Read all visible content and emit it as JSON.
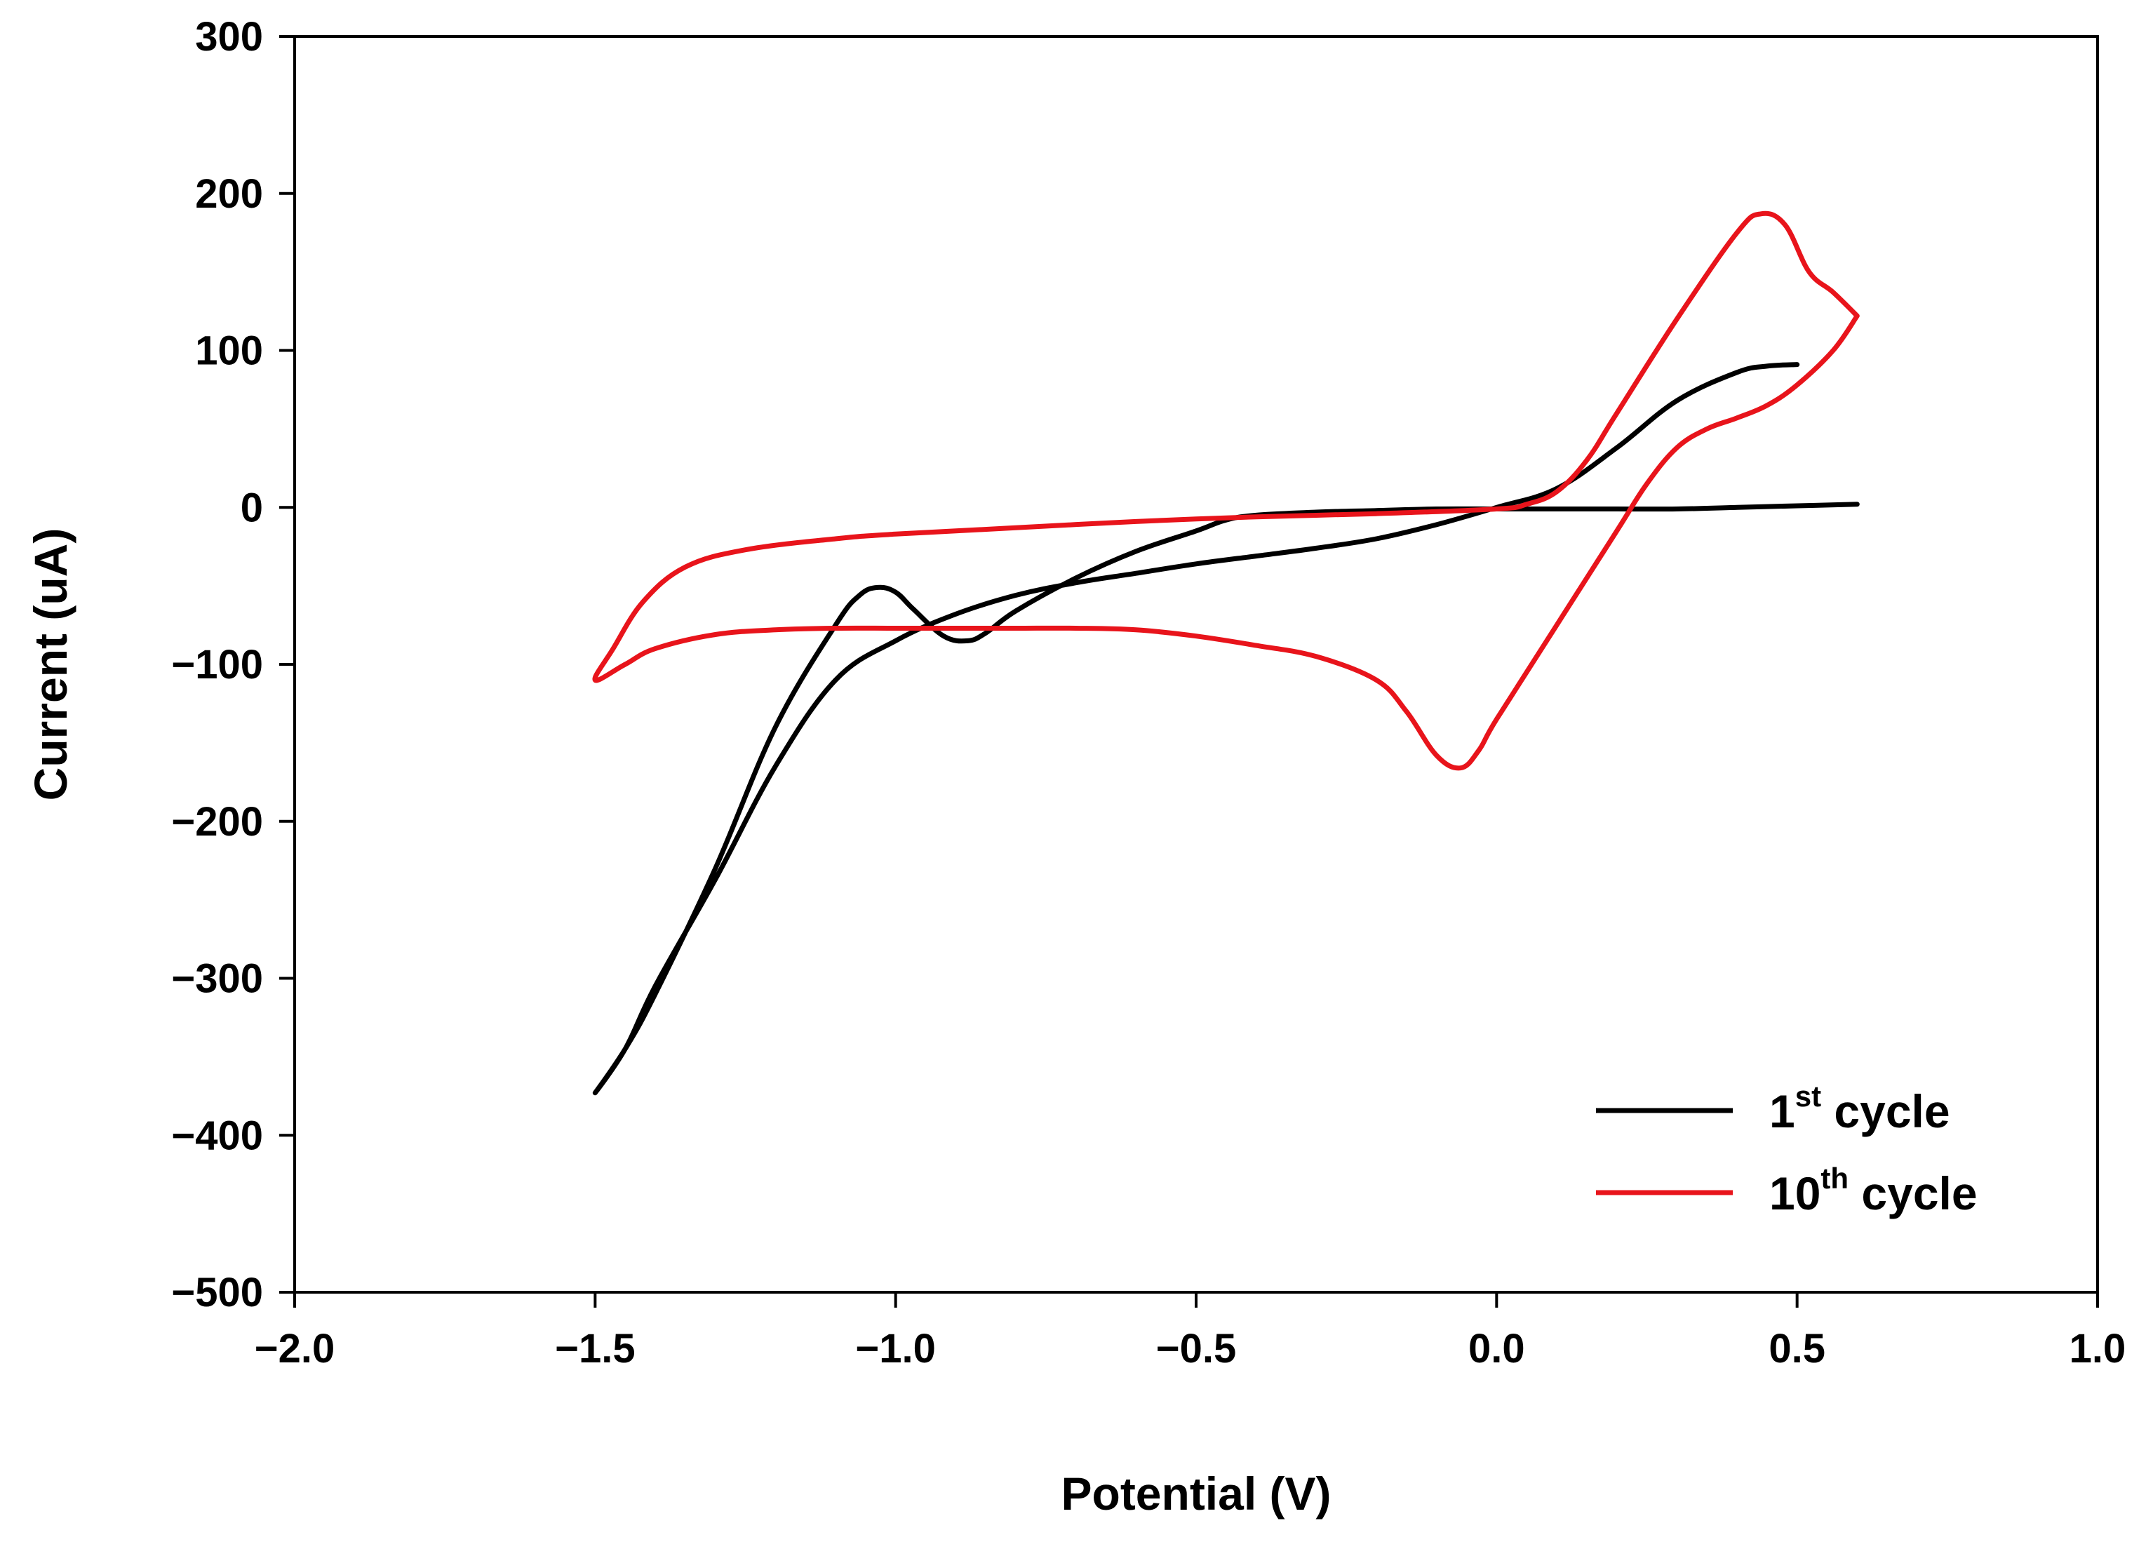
{
  "chart_data": {
    "type": "line",
    "title": "",
    "xlabel": "Potential (V)",
    "ylabel": "Current (uA)",
    "xlim": [
      -2.0,
      1.0
    ],
    "ylim": [
      -500,
      300
    ],
    "xticks": [
      -2.0,
      -1.5,
      -1.0,
      -0.5,
      0.0,
      0.5,
      1.0
    ],
    "xtick_labels": [
      "−2.0",
      "−1.5",
      "−1.0",
      "−0.5",
      "0.0",
      "0.5",
      "1.0"
    ],
    "yticks": [
      300,
      200,
      100,
      0,
      -100,
      -200,
      -300,
      -400,
      -500
    ],
    "ytick_labels": [
      "300",
      "200",
      "100",
      "0",
      "−100",
      "−200",
      "−300",
      "−400",
      "−500"
    ],
    "grid": false,
    "legend_position": "bottom-right",
    "series": [
      {
        "name": "1st cycle",
        "label_base": "1",
        "label_sup": "st",
        "label_rest": " cycle",
        "color": "#000000",
        "points": [
          [
            0.6,
            2
          ],
          [
            0.5,
            1
          ],
          [
            0.4,
            0
          ],
          [
            0.3,
            -1
          ],
          [
            0.2,
            -1
          ],
          [
            0.1,
            -1
          ],
          [
            0.0,
            -1
          ],
          [
            -0.1,
            -1
          ],
          [
            -0.2,
            -2
          ],
          [
            -0.3,
            -3
          ],
          [
            -0.4,
            -5
          ],
          [
            -0.45,
            -8
          ],
          [
            -0.5,
            -15
          ],
          [
            -0.6,
            -28
          ],
          [
            -0.7,
            -45
          ],
          [
            -0.8,
            -66
          ],
          [
            -0.85,
            -80
          ],
          [
            -0.88,
            -85
          ],
          [
            -0.92,
            -82
          ],
          [
            -0.97,
            -65
          ],
          [
            -1.0,
            -54
          ],
          [
            -1.03,
            -51
          ],
          [
            -1.06,
            -56
          ],
          [
            -1.1,
            -75
          ],
          [
            -1.2,
            -140
          ],
          [
            -1.3,
            -230
          ],
          [
            -1.4,
            -310
          ],
          [
            -1.45,
            -345
          ],
          [
            -1.5,
            -373
          ],
          [
            -1.45,
            -345
          ],
          [
            -1.4,
            -305
          ],
          [
            -1.3,
            -237
          ],
          [
            -1.2,
            -165
          ],
          [
            -1.1,
            -110
          ],
          [
            -1.0,
            -85
          ],
          [
            -0.9,
            -68
          ],
          [
            -0.8,
            -56
          ],
          [
            -0.7,
            -48
          ],
          [
            -0.6,
            -42
          ],
          [
            -0.5,
            -36
          ],
          [
            -0.4,
            -31
          ],
          [
            -0.3,
            -26
          ],
          [
            -0.2,
            -20
          ],
          [
            -0.1,
            -11
          ],
          [
            0.0,
            0
          ],
          [
            0.1,
            12
          ],
          [
            0.2,
            38
          ],
          [
            0.3,
            68
          ],
          [
            0.4,
            86
          ],
          [
            0.45,
            90
          ],
          [
            0.5,
            91
          ]
        ]
      },
      {
        "name": "10th cycle",
        "label_base": "10",
        "label_sup": "th",
        "label_rest": " cycle",
        "color": "#e8141b",
        "points": [
          [
            0.6,
            122
          ],
          [
            0.56,
            100
          ],
          [
            0.5,
            78
          ],
          [
            0.45,
            65
          ],
          [
            0.4,
            57
          ],
          [
            0.35,
            50
          ],
          [
            0.3,
            38
          ],
          [
            0.25,
            15
          ],
          [
            0.2,
            -15
          ],
          [
            0.1,
            -75
          ],
          [
            0.0,
            -135
          ],
          [
            -0.03,
            -155
          ],
          [
            -0.06,
            -166
          ],
          [
            -0.1,
            -158
          ],
          [
            -0.15,
            -130
          ],
          [
            -0.2,
            -110
          ],
          [
            -0.3,
            -95
          ],
          [
            -0.4,
            -88
          ],
          [
            -0.5,
            -82
          ],
          [
            -0.6,
            -78
          ],
          [
            -0.7,
            -77
          ],
          [
            -0.8,
            -77
          ],
          [
            -0.9,
            -77
          ],
          [
            -1.0,
            -77
          ],
          [
            -1.1,
            -77
          ],
          [
            -1.2,
            -78
          ],
          [
            -1.3,
            -81
          ],
          [
            -1.4,
            -90
          ],
          [
            -1.45,
            -100
          ],
          [
            -1.5,
            -110
          ],
          [
            -1.47,
            -90
          ],
          [
            -1.42,
            -60
          ],
          [
            -1.35,
            -38
          ],
          [
            -1.25,
            -27
          ],
          [
            -1.1,
            -20
          ],
          [
            -1.0,
            -17
          ],
          [
            -0.8,
            -13
          ],
          [
            -0.6,
            -9
          ],
          [
            -0.4,
            -6
          ],
          [
            -0.2,
            -4
          ],
          [
            0.0,
            -1
          ],
          [
            0.05,
            2
          ],
          [
            0.1,
            10
          ],
          [
            0.15,
            30
          ],
          [
            0.2,
            60
          ],
          [
            0.3,
            120
          ],
          [
            0.4,
            175
          ],
          [
            0.44,
            187
          ],
          [
            0.48,
            180
          ],
          [
            0.52,
            150
          ],
          [
            0.56,
            137
          ],
          [
            0.6,
            122
          ]
        ]
      }
    ]
  }
}
